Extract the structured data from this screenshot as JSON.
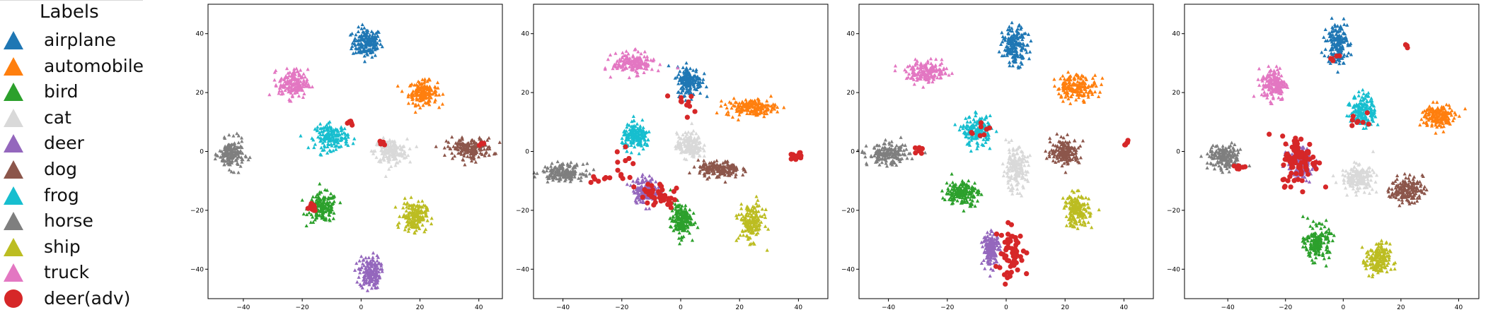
{
  "legend": {
    "title": "Labels",
    "items": [
      {
        "label": "airplane",
        "color": "#1f77b4",
        "marker": "triangle"
      },
      {
        "label": "automobile",
        "color": "#ff7f0e",
        "marker": "triangle"
      },
      {
        "label": "bird",
        "color": "#2ca02c",
        "marker": "triangle"
      },
      {
        "label": "cat",
        "color": "#d9d9d9",
        "marker": "triangle"
      },
      {
        "label": "deer",
        "color": "#9467bd",
        "marker": "triangle"
      },
      {
        "label": "dog",
        "color": "#8c564b",
        "marker": "triangle"
      },
      {
        "label": "frog",
        "color": "#17becf",
        "marker": "triangle"
      },
      {
        "label": "horse",
        "color": "#7f7f7f",
        "marker": "triangle"
      },
      {
        "label": "ship",
        "color": "#bcbd22",
        "marker": "triangle"
      },
      {
        "label": "truck",
        "color": "#e377c2",
        "marker": "triangle"
      },
      {
        "label": "deer(adv)",
        "color": "#d62728",
        "marker": "circle"
      }
    ]
  },
  "chart_data": [
    {
      "type": "scatter",
      "xlim": [
        -52,
        48
      ],
      "ylim": [
        -50,
        50
      ],
      "xticks": [
        -40,
        -20,
        0,
        20,
        40
      ],
      "yticks": [
        -40,
        -20,
        0,
        20,
        40
      ],
      "clusters": [
        {
          "label": "airplane",
          "center": [
            2,
            37
          ],
          "spread": [
            3.5,
            3.5
          ]
        },
        {
          "label": "automobile",
          "center": [
            21,
            20
          ],
          "spread": [
            3.5,
            2.8
          ]
        },
        {
          "label": "bird",
          "center": [
            -13,
            -19
          ],
          "spread": [
            3.5,
            3.5
          ]
        },
        {
          "label": "cat",
          "center": [
            10,
            0
          ],
          "spread": [
            4,
            3
          ]
        },
        {
          "label": "deer",
          "center": [
            3,
            -41
          ],
          "spread": [
            2.5,
            4
          ]
        },
        {
          "label": "dog",
          "center": [
            37,
            1
          ],
          "spread": [
            5.5,
            2.5
          ]
        },
        {
          "label": "frog",
          "center": [
            -10,
            5
          ],
          "spread": [
            4,
            3
          ]
        },
        {
          "label": "horse",
          "center": [
            -44,
            -1
          ],
          "spread": [
            3,
            3.5
          ]
        },
        {
          "label": "ship",
          "center": [
            18,
            -22
          ],
          "spread": [
            3,
            3.5
          ]
        },
        {
          "label": "truck",
          "center": [
            -23,
            23
          ],
          "spread": [
            3.5,
            3.5
          ]
        }
      ],
      "adv_clusters": [
        {
          "center": [
            -17,
            -19
          ],
          "spread": [
            1.5,
            1.5
          ],
          "n": 14
        },
        {
          "center": [
            -4,
            10
          ],
          "spread": [
            1.2,
            0.8
          ],
          "n": 6
        },
        {
          "center": [
            7,
            3
          ],
          "spread": [
            1,
            0.6
          ],
          "n": 6
        },
        {
          "center": [
            41,
            3
          ],
          "spread": [
            1,
            0.8
          ],
          "n": 5
        }
      ]
    },
    {
      "type": "scatter",
      "xlim": [
        -50,
        50
      ],
      "ylim": [
        -50,
        50
      ],
      "xticks": [
        -40,
        -20,
        0,
        20,
        40
      ],
      "yticks": [
        -40,
        -20,
        0,
        20,
        40
      ],
      "clusters": [
        {
          "label": "airplane",
          "center": [
            3,
            24
          ],
          "spread": [
            3,
            3.5
          ]
        },
        {
          "label": "automobile",
          "center": [
            24,
            15
          ],
          "spread": [
            6,
            2
          ]
        },
        {
          "label": "bird",
          "center": [
            0,
            -23
          ],
          "spread": [
            2.5,
            4
          ]
        },
        {
          "label": "cat",
          "center": [
            3,
            2
          ],
          "spread": [
            3,
            3
          ]
        },
        {
          "label": "deer",
          "center": [
            -12,
            -13
          ],
          "spread": [
            3,
            3
          ]
        },
        {
          "label": "dog",
          "center": [
            13,
            -6
          ],
          "spread": [
            5,
            2
          ]
        },
        {
          "label": "frog",
          "center": [
            -15,
            5
          ],
          "spread": [
            3.5,
            3
          ]
        },
        {
          "label": "horse",
          "center": [
            -40,
            -7
          ],
          "spread": [
            5,
            2
          ]
        },
        {
          "label": "ship",
          "center": [
            24,
            -24
          ],
          "spread": [
            3,
            4.5
          ]
        },
        {
          "label": "truck",
          "center": [
            -16,
            30
          ],
          "spread": [
            5,
            2.5
          ]
        }
      ],
      "adv_clusters": [
        {
          "center": [
            -8,
            -15
          ],
          "spread": [
            5,
            3.5
          ],
          "n": 40
        },
        {
          "center": [
            0,
            16
          ],
          "spread": [
            3,
            3
          ],
          "n": 10
        },
        {
          "center": [
            39,
            -2
          ],
          "spread": [
            1.5,
            1.2
          ],
          "n": 16
        },
        {
          "center": [
            -20,
            -4
          ],
          "spread": [
            3,
            4
          ],
          "n": 12
        },
        {
          "center": [
            -28,
            -10
          ],
          "spread": [
            3,
            1.5
          ],
          "n": 6
        }
      ]
    },
    {
      "type": "scatter",
      "xlim": [
        -50,
        50
      ],
      "ylim": [
        -50,
        50
      ],
      "xticks": [
        -40,
        -20,
        0,
        20,
        40
      ],
      "yticks": [
        -40,
        -20,
        0,
        20,
        40
      ],
      "clusters": [
        {
          "label": "airplane",
          "center": [
            3,
            36
          ],
          "spread": [
            3,
            4.5
          ]
        },
        {
          "label": "automobile",
          "center": [
            24,
            22
          ],
          "spread": [
            5,
            3
          ]
        },
        {
          "label": "bird",
          "center": [
            -15,
            -14
          ],
          "spread": [
            4,
            3
          ]
        },
        {
          "label": "cat",
          "center": [
            3,
            -6
          ],
          "spread": [
            3,
            5
          ]
        },
        {
          "label": "deer",
          "center": [
            -5,
            -33
          ],
          "spread": [
            2,
            4
          ]
        },
        {
          "label": "dog",
          "center": [
            20,
            0
          ],
          "spread": [
            3.5,
            3
          ]
        },
        {
          "label": "frog",
          "center": [
            -10,
            7
          ],
          "spread": [
            3.5,
            3.5
          ]
        },
        {
          "label": "horse",
          "center": [
            -40,
            -1
          ],
          "spread": [
            5,
            2.5
          ]
        },
        {
          "label": "ship",
          "center": [
            24,
            -20
          ],
          "spread": [
            3,
            4
          ]
        },
        {
          "label": "truck",
          "center": [
            -27,
            27
          ],
          "spread": [
            5,
            2.5
          ]
        }
      ],
      "adv_clusters": [
        {
          "center": [
            2,
            -35
          ],
          "spread": [
            4,
            6
          ],
          "n": 55
        },
        {
          "center": [
            -10,
            8
          ],
          "spread": [
            3,
            3
          ],
          "n": 8
        },
        {
          "center": [
            41,
            3
          ],
          "spread": [
            0.8,
            0.8
          ],
          "n": 5
        },
        {
          "center": [
            -30,
            0
          ],
          "spread": [
            2,
            2
          ],
          "n": 6
        }
      ]
    },
    {
      "type": "scatter",
      "xlim": [
        -55,
        47
      ],
      "ylim": [
        -50,
        50
      ],
      "xticks": [
        -40,
        -20,
        0,
        20,
        40
      ],
      "yticks": [
        -40,
        -20,
        0,
        20,
        40
      ],
      "clusters": [
        {
          "label": "airplane",
          "center": [
            -2,
            37
          ],
          "spread": [
            2.5,
            5
          ]
        },
        {
          "label": "automobile",
          "center": [
            33,
            12
          ],
          "spread": [
            4,
            3
          ]
        },
        {
          "label": "bird",
          "center": [
            -9,
            -31
          ],
          "spread": [
            3,
            4
          ]
        },
        {
          "label": "cat",
          "center": [
            5,
            -9
          ],
          "spread": [
            4,
            3
          ]
        },
        {
          "label": "deer",
          "center": [
            -15,
            -4
          ],
          "spread": [
            3,
            4
          ]
        },
        {
          "label": "dog",
          "center": [
            22,
            -13
          ],
          "spread": [
            4,
            3
          ]
        },
        {
          "label": "frog",
          "center": [
            7,
            14
          ],
          "spread": [
            3,
            4
          ]
        },
        {
          "label": "horse",
          "center": [
            -41,
            -2
          ],
          "spread": [
            4,
            3
          ]
        },
        {
          "label": "ship",
          "center": [
            12,
            -37
          ],
          "spread": [
            3,
            4
          ]
        },
        {
          "label": "truck",
          "center": [
            -24,
            23
          ],
          "spread": [
            3,
            4
          ]
        }
      ],
      "adv_clusters": [
        {
          "center": [
            -15,
            -3
          ],
          "spread": [
            4.5,
            6
          ],
          "n": 90
        },
        {
          "center": [
            22,
            36
          ],
          "spread": [
            0.6,
            0.6
          ],
          "n": 4
        },
        {
          "center": [
            -3,
            32
          ],
          "spread": [
            1.5,
            2
          ],
          "n": 5
        },
        {
          "center": [
            5,
            11
          ],
          "spread": [
            2,
            3
          ],
          "n": 8
        },
        {
          "center": [
            -36,
            -5
          ],
          "spread": [
            2,
            2
          ],
          "n": 6
        }
      ]
    }
  ]
}
